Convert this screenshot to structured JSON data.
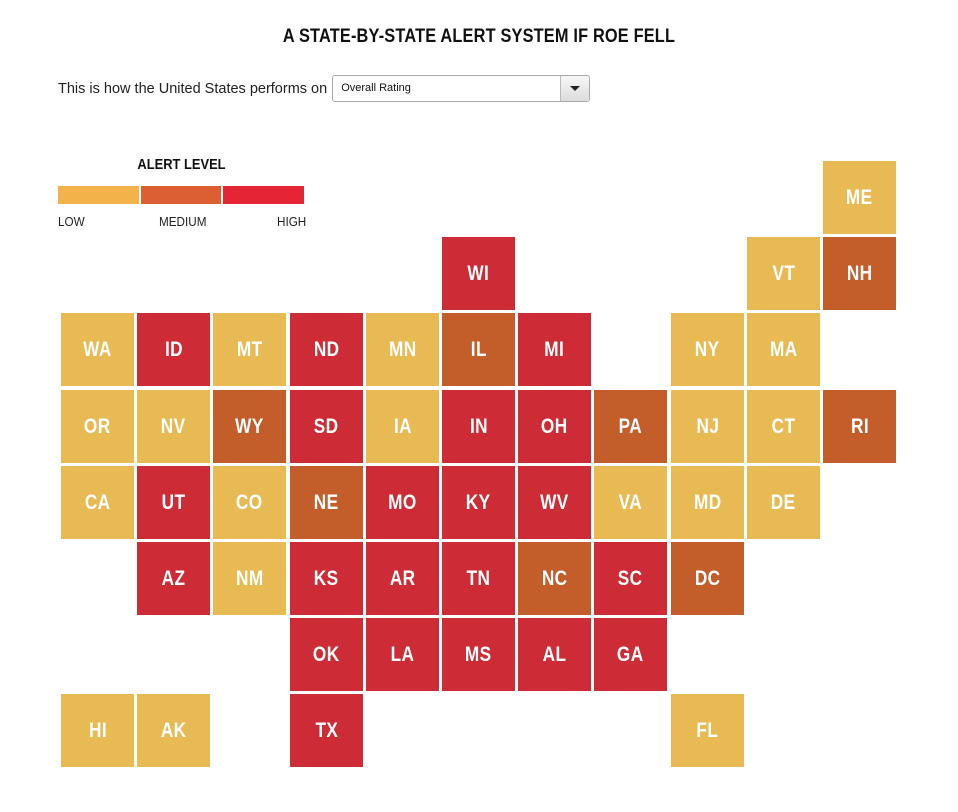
{
  "title": "A STATE-BY-STATE ALERT SYSTEM IF ROE FELL",
  "prompt": "This is how the United States performs on",
  "dropdown": {
    "selected": "Overall Rating"
  },
  "legend": {
    "title": "ALERT LEVEL",
    "levels": [
      {
        "key": "low",
        "label": "LOW",
        "color": "#f3b24a"
      },
      {
        "key": "medium",
        "label": "MEDIUM",
        "color": "#db5f32"
      },
      {
        "key": "high",
        "label": "HIGH",
        "color": "#e42535"
      }
    ]
  },
  "tile_colors": {
    "low": "#e8ba54",
    "medium": "#c35e2b",
    "high": "#cd2b35"
  },
  "states": [
    {
      "abbr": "ME",
      "level": "low",
      "col": 10,
      "row": 0
    },
    {
      "abbr": "WI",
      "level": "high",
      "col": 5,
      "row": 1
    },
    {
      "abbr": "VT",
      "level": "low",
      "col": 9,
      "row": 1
    },
    {
      "abbr": "NH",
      "level": "medium",
      "col": 10,
      "row": 1
    },
    {
      "abbr": "WA",
      "level": "low",
      "col": 0,
      "row": 2
    },
    {
      "abbr": "ID",
      "level": "high",
      "col": 1,
      "row": 2
    },
    {
      "abbr": "MT",
      "level": "low",
      "col": 2,
      "row": 2
    },
    {
      "abbr": "ND",
      "level": "high",
      "col": 3,
      "row": 2
    },
    {
      "abbr": "MN",
      "level": "low",
      "col": 4,
      "row": 2
    },
    {
      "abbr": "IL",
      "level": "medium",
      "col": 5,
      "row": 2
    },
    {
      "abbr": "MI",
      "level": "high",
      "col": 6,
      "row": 2
    },
    {
      "abbr": "NY",
      "level": "low",
      "col": 8,
      "row": 2
    },
    {
      "abbr": "MA",
      "level": "low",
      "col": 9,
      "row": 2
    },
    {
      "abbr": "OR",
      "level": "low",
      "col": 0,
      "row": 3
    },
    {
      "abbr": "NV",
      "level": "low",
      "col": 1,
      "row": 3
    },
    {
      "abbr": "WY",
      "level": "medium",
      "col": 2,
      "row": 3
    },
    {
      "abbr": "SD",
      "level": "high",
      "col": 3,
      "row": 3
    },
    {
      "abbr": "IA",
      "level": "low",
      "col": 4,
      "row": 3
    },
    {
      "abbr": "IN",
      "level": "high",
      "col": 5,
      "row": 3
    },
    {
      "abbr": "OH",
      "level": "high",
      "col": 6,
      "row": 3
    },
    {
      "abbr": "PA",
      "level": "medium",
      "col": 7,
      "row": 3
    },
    {
      "abbr": "NJ",
      "level": "low",
      "col": 8,
      "row": 3
    },
    {
      "abbr": "CT",
      "level": "low",
      "col": 9,
      "row": 3
    },
    {
      "abbr": "RI",
      "level": "medium",
      "col": 10,
      "row": 3
    },
    {
      "abbr": "CA",
      "level": "low",
      "col": 0,
      "row": 4
    },
    {
      "abbr": "UT",
      "level": "high",
      "col": 1,
      "row": 4
    },
    {
      "abbr": "CO",
      "level": "low",
      "col": 2,
      "row": 4
    },
    {
      "abbr": "NE",
      "level": "medium",
      "col": 3,
      "row": 4
    },
    {
      "abbr": "MO",
      "level": "high",
      "col": 4,
      "row": 4
    },
    {
      "abbr": "KY",
      "level": "high",
      "col": 5,
      "row": 4
    },
    {
      "abbr": "WV",
      "level": "high",
      "col": 6,
      "row": 4
    },
    {
      "abbr": "VA",
      "level": "low",
      "col": 7,
      "row": 4
    },
    {
      "abbr": "MD",
      "level": "low",
      "col": 8,
      "row": 4
    },
    {
      "abbr": "DE",
      "level": "low",
      "col": 9,
      "row": 4
    },
    {
      "abbr": "AZ",
      "level": "high",
      "col": 1,
      "row": 5
    },
    {
      "abbr": "NM",
      "level": "low",
      "col": 2,
      "row": 5
    },
    {
      "abbr": "KS",
      "level": "high",
      "col": 3,
      "row": 5
    },
    {
      "abbr": "AR",
      "level": "high",
      "col": 4,
      "row": 5
    },
    {
      "abbr": "TN",
      "level": "high",
      "col": 5,
      "row": 5
    },
    {
      "abbr": "NC",
      "level": "medium",
      "col": 6,
      "row": 5
    },
    {
      "abbr": "SC",
      "level": "high",
      "col": 7,
      "row": 5
    },
    {
      "abbr": "DC",
      "level": "medium",
      "col": 8,
      "row": 5
    },
    {
      "abbr": "OK",
      "level": "high",
      "col": 3,
      "row": 6
    },
    {
      "abbr": "LA",
      "level": "high",
      "col": 4,
      "row": 6
    },
    {
      "abbr": "MS",
      "level": "high",
      "col": 5,
      "row": 6
    },
    {
      "abbr": "AL",
      "level": "high",
      "col": 6,
      "row": 6
    },
    {
      "abbr": "GA",
      "level": "high",
      "col": 7,
      "row": 6
    },
    {
      "abbr": "HI",
      "level": "low",
      "col": 0,
      "row": 7
    },
    {
      "abbr": "AK",
      "level": "low",
      "col": 1,
      "row": 7
    },
    {
      "abbr": "TX",
      "level": "high",
      "col": 3,
      "row": 7
    },
    {
      "abbr": "FL",
      "level": "low",
      "col": 8,
      "row": 7
    }
  ]
}
